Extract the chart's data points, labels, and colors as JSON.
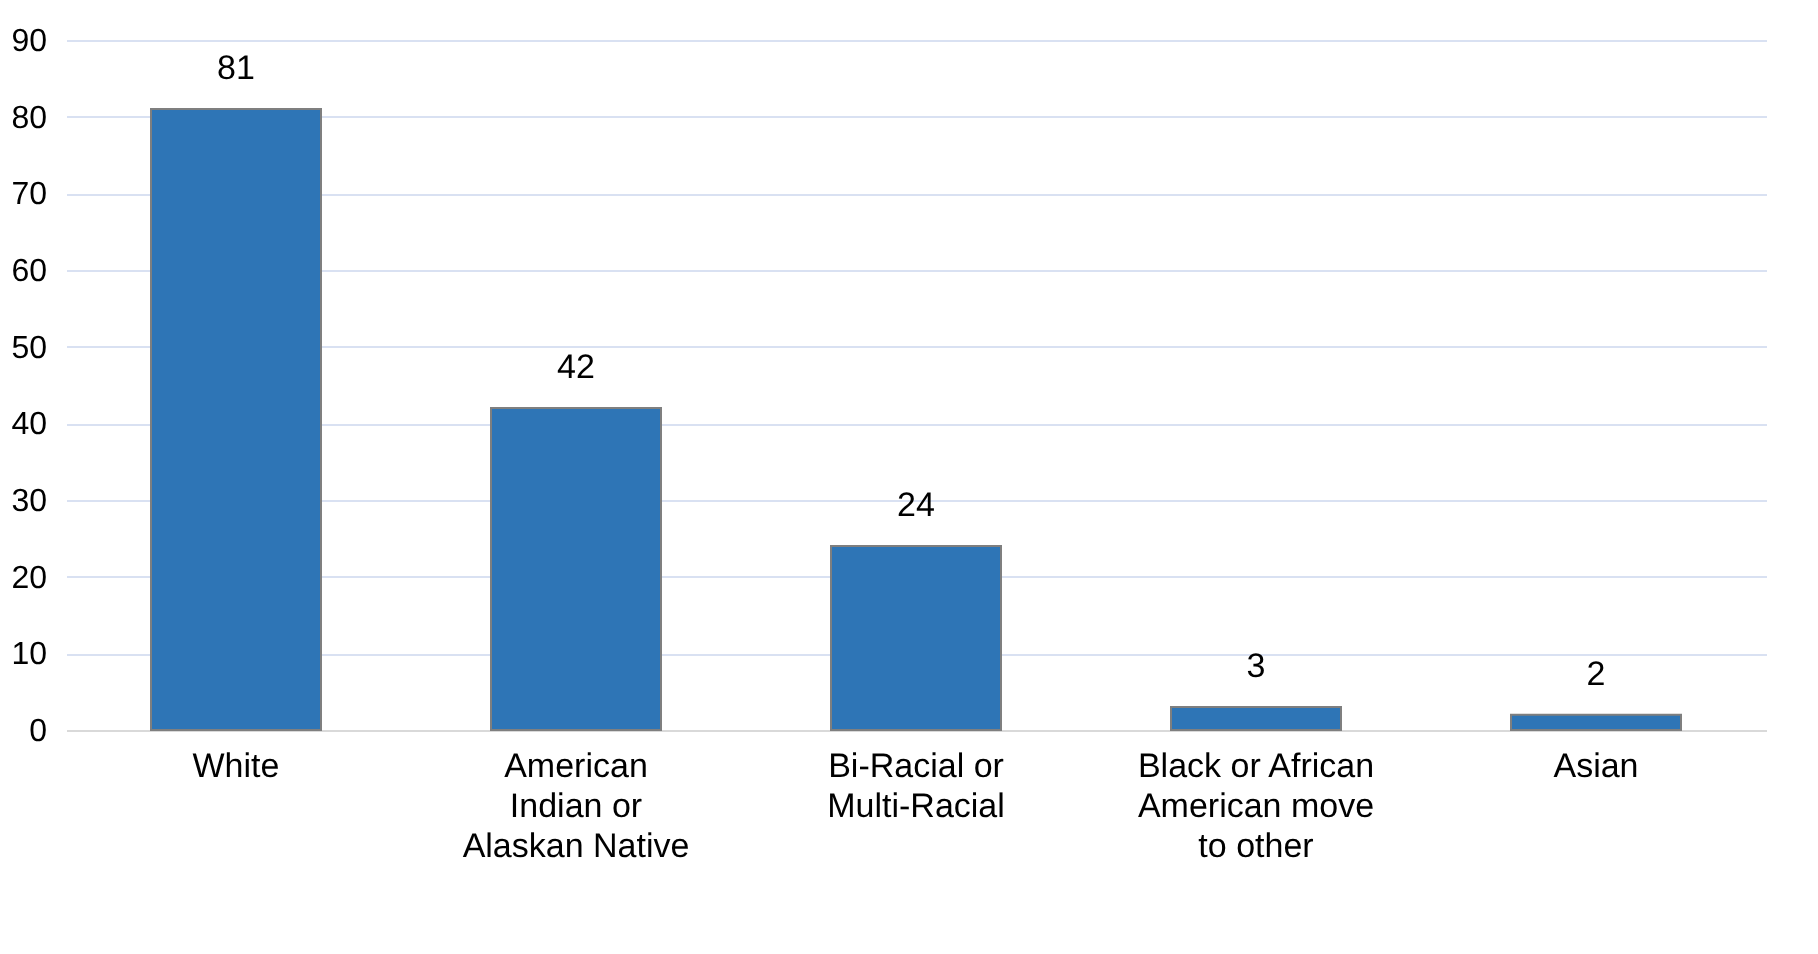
{
  "chart_data": {
    "type": "bar",
    "categories": [
      "White",
      "American\nIndian or\nAlaskan Native",
      "Bi-Racial or\nMulti-Racial",
      "Black or African\nAmerican move\nto other",
      "Asian"
    ],
    "values": [
      81,
      42,
      24,
      3,
      2
    ],
    "color": "#2e75b6",
    "ylim": [
      0,
      90
    ],
    "yticks": [
      0,
      10,
      20,
      30,
      40,
      50,
      60,
      70,
      80,
      90
    ],
    "grid": "y",
    "data_labels": true
  }
}
